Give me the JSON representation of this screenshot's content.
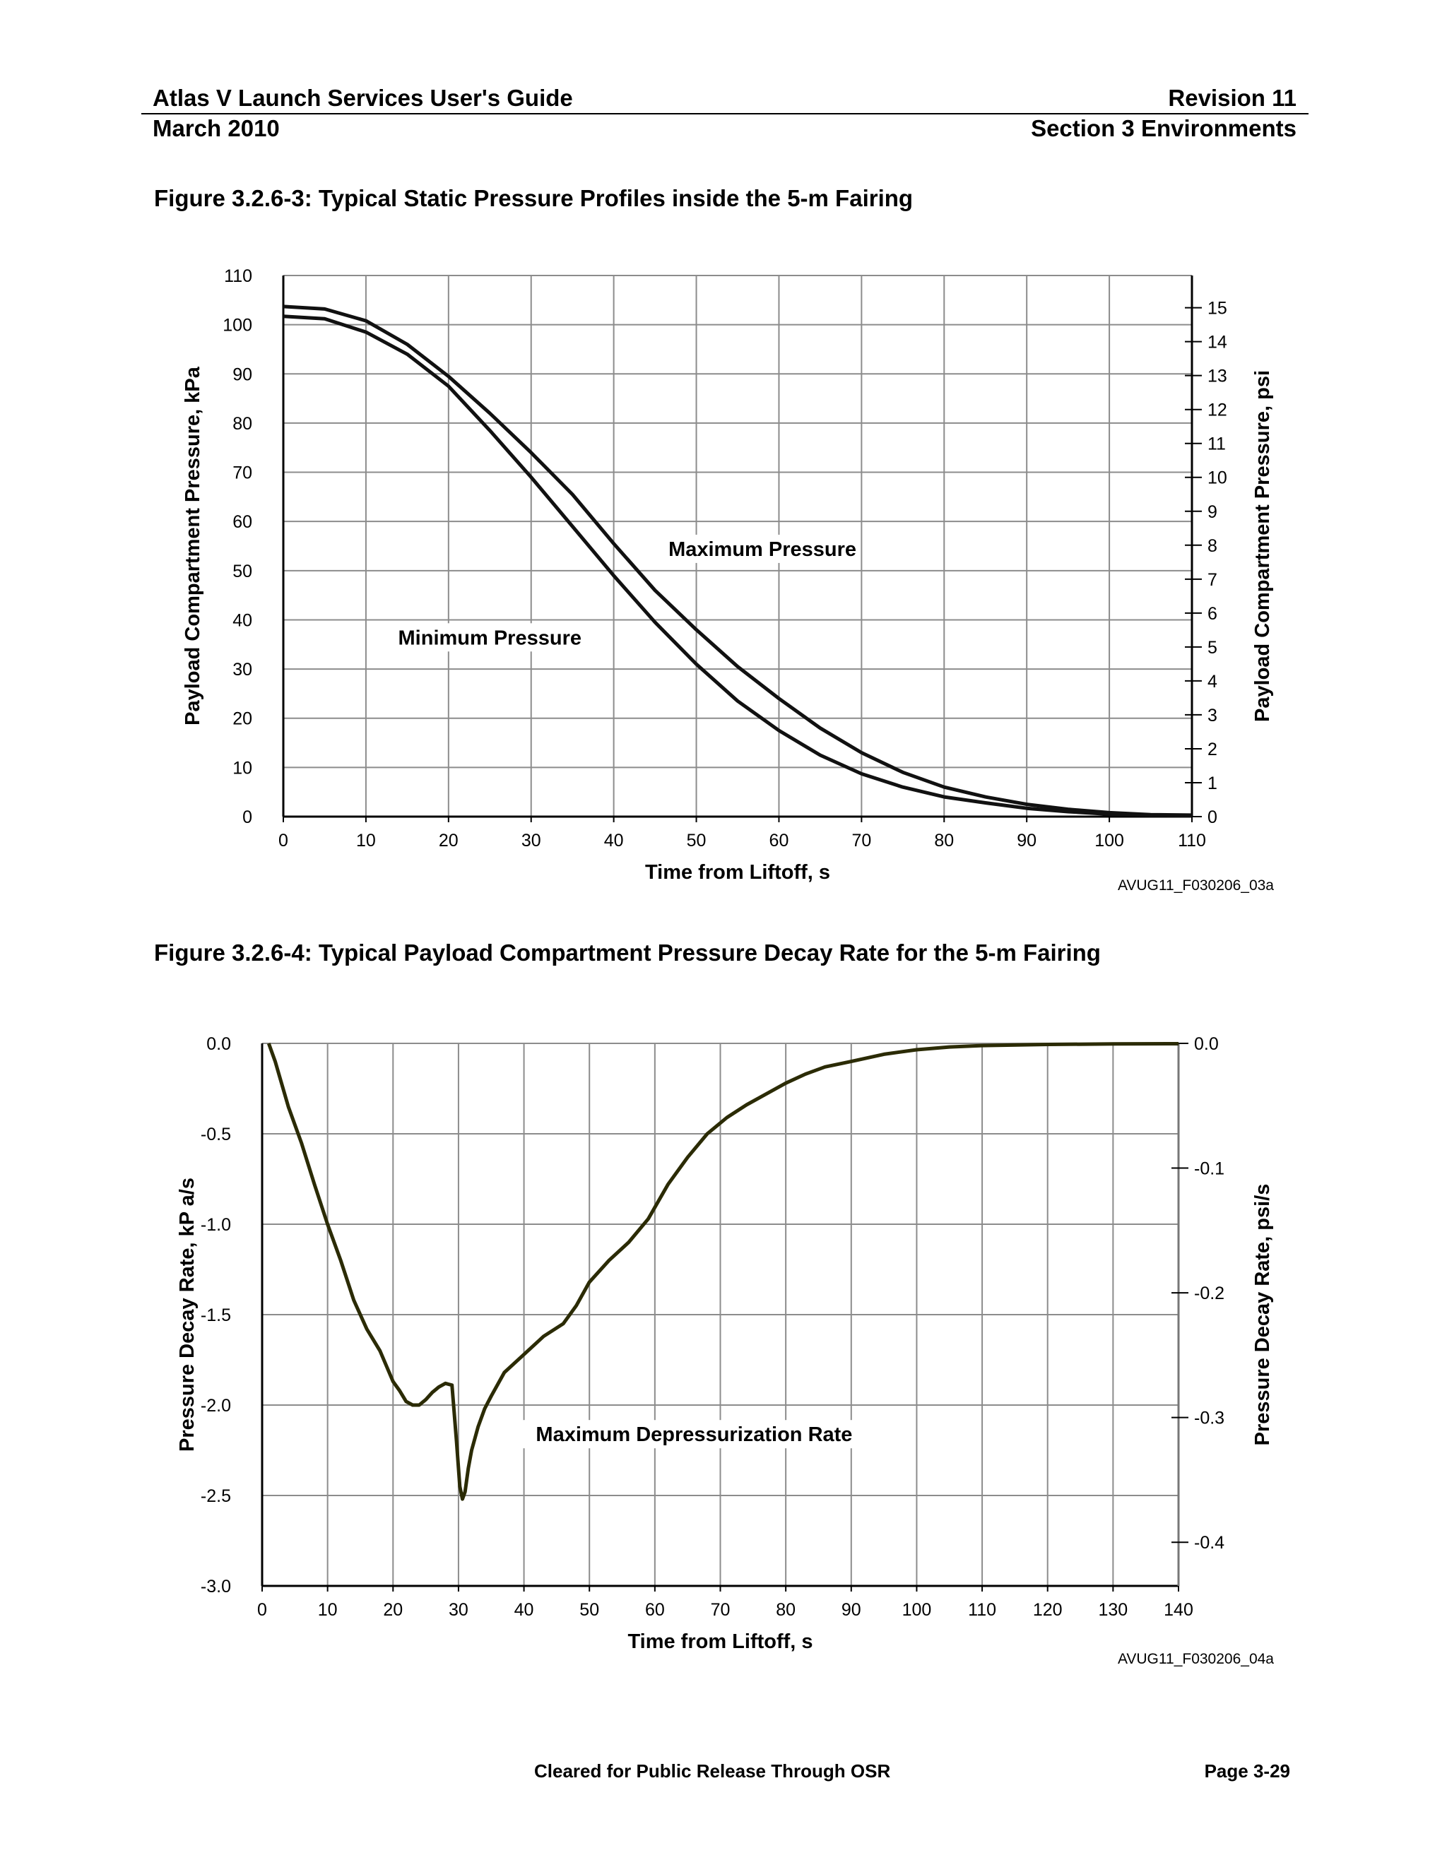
{
  "header": {
    "title": "Atlas V Launch Services User's Guide",
    "revision": "Revision 11",
    "date": "March 2010",
    "section": "Section 3 Environments"
  },
  "figures": {
    "fig1": {
      "title": "Figure 3.2.6-3: Typical Static Pressure Profiles inside the 5-m Fairing",
      "id_code": "AVUG11_F030206_03a"
    },
    "fig2": {
      "title": "Figure 3.2.6-4: Typical Payload Compartment Pressure Decay Rate for the 5-m Fairing",
      "id_code": "AVUG11_F030206_04a"
    }
  },
  "footer": {
    "release": "Cleared for Public Release Through OSR",
    "page": "Page 3-29"
  },
  "chart_data": [
    {
      "type": "line",
      "xlabel": "Time from Liftoff, s",
      "ylabel": "Payload Compartment Pressure, kPa",
      "y2label": "Payload Compartment Pressure, psi",
      "xlim": [
        0,
        110
      ],
      "ylim": [
        0,
        110
      ],
      "y2lim": [
        0,
        15.95
      ],
      "x_ticks": [
        0,
        10,
        20,
        30,
        40,
        50,
        60,
        70,
        80,
        90,
        100,
        110
      ],
      "y_ticks": [
        0,
        10,
        20,
        30,
        40,
        50,
        60,
        70,
        80,
        90,
        100,
        110
      ],
      "y2_ticks": [
        0,
        1,
        2,
        3,
        4,
        5,
        6,
        7,
        8,
        9,
        10,
        11,
        12,
        13,
        14,
        15
      ],
      "grid": true,
      "annotations": [
        {
          "text": "Maximum Pressure",
          "x": 58,
          "y": 53
        },
        {
          "text": "Minimum Pressure",
          "x": 25,
          "y": 35
        }
      ],
      "series": [
        {
          "name": "Maximum Pressure",
          "x": [
            0,
            5,
            10,
            15,
            20,
            25,
            30,
            35,
            40,
            45,
            50,
            55,
            60,
            65,
            70,
            75,
            80,
            85,
            90,
            95,
            100,
            105,
            110
          ],
          "values": [
            103.7,
            103.2,
            100.8,
            96,
            89.5,
            82,
            74,
            65.5,
            55.5,
            46,
            38,
            30.5,
            24,
            18,
            13,
            9,
            6,
            4,
            2.5,
            1.5,
            0.8,
            0.4,
            0.3
          ]
        },
        {
          "name": "Minimum Pressure",
          "x": [
            0,
            5,
            10,
            15,
            20,
            25,
            30,
            35,
            40,
            45,
            50,
            55,
            60,
            65,
            70,
            75,
            80,
            85,
            90,
            95,
            100,
            105,
            110
          ],
          "values": [
            101.7,
            101.2,
            98.5,
            94,
            87.5,
            78.5,
            69,
            59,
            49,
            39.5,
            31,
            23.5,
            17.5,
            12.5,
            8.7,
            6,
            4,
            2.8,
            1.7,
            1,
            0.5,
            0.3,
            0.2
          ]
        }
      ]
    },
    {
      "type": "line",
      "xlabel": "Time from Liftoff, s",
      "ylabel": "Pressure Decay Rate, kP a/s",
      "y2label": "Pressure Decay Rate, psi/s",
      "xlim": [
        0,
        140
      ],
      "ylim": [
        -3.0,
        0.0
      ],
      "y2lim": [
        -0.435,
        0.0
      ],
      "x_ticks": [
        0,
        10,
        20,
        30,
        40,
        50,
        60,
        70,
        80,
        90,
        100,
        110,
        120,
        130,
        140
      ],
      "y_ticks": [
        "0.0",
        "-0.5",
        "-1.0",
        "-1.5",
        "-2.0",
        "-2.5",
        "-3.0"
      ],
      "y2_ticks": [
        "0.0",
        "-0.1",
        "-0.2",
        "-0.3",
        "-0.4"
      ],
      "grid": true,
      "annotations": [
        {
          "text": "Maximum Depressurization Rate",
          "x": 66,
          "y": -2.2
        }
      ],
      "series": [
        {
          "name": "Maximum Depressurization Rate",
          "x": [
            1,
            2,
            4,
            6,
            8,
            10,
            12,
            14,
            16,
            18,
            20,
            21,
            22,
            23,
            24,
            25,
            26,
            27,
            28,
            29,
            29.7,
            30.2,
            30.6,
            31,
            31.5,
            32,
            33,
            34,
            35,
            37,
            40,
            43,
            46,
            48,
            50,
            53,
            56,
            59,
            62,
            65,
            68,
            71,
            74,
            77,
            80,
            83,
            86,
            90,
            95,
            100,
            105,
            110,
            120,
            130,
            140
          ],
          "values": [
            0,
            -0.1,
            -0.35,
            -0.55,
            -0.78,
            -1.0,
            -1.2,
            -1.42,
            -1.58,
            -1.7,
            -1.87,
            -1.92,
            -1.98,
            -2.0,
            -2.0,
            -1.97,
            -1.93,
            -1.9,
            -1.88,
            -1.89,
            -2.2,
            -2.45,
            -2.52,
            -2.48,
            -2.35,
            -2.25,
            -2.12,
            -2.02,
            -1.95,
            -1.82,
            -1.72,
            -1.62,
            -1.55,
            -1.45,
            -1.32,
            -1.2,
            -1.1,
            -0.97,
            -0.78,
            -0.63,
            -0.5,
            -0.41,
            -0.34,
            -0.28,
            -0.22,
            -0.17,
            -0.13,
            -0.1,
            -0.06,
            -0.035,
            -0.02,
            -0.012,
            -0.006,
            -0.003,
            -0.002
          ]
        }
      ]
    }
  ]
}
